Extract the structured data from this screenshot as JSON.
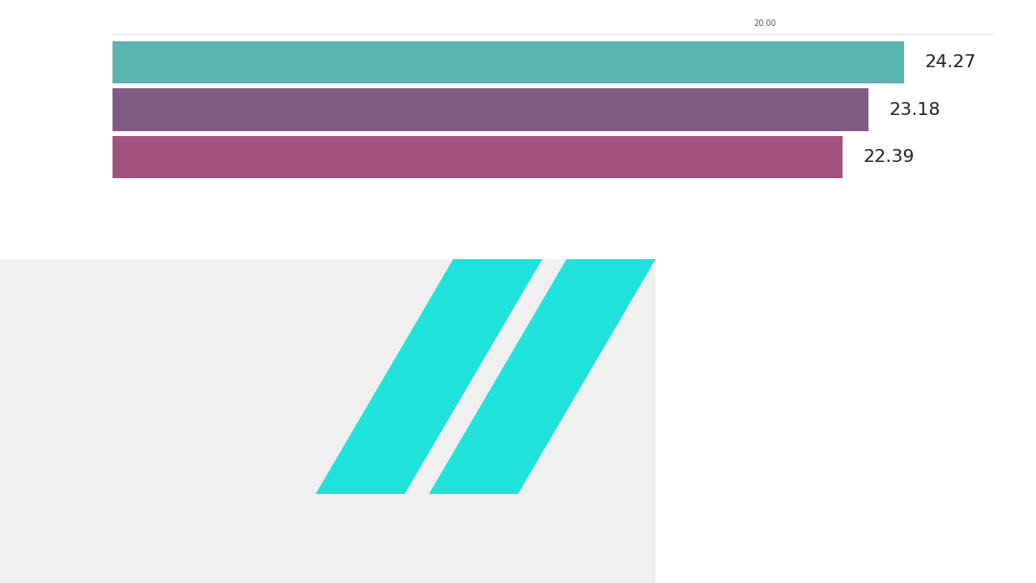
{
  "chart_data": {
    "type": "bar",
    "orientation": "horizontal",
    "categories": [
      null,
      null,
      null
    ],
    "values": [
      24.27,
      23.18,
      22.39
    ],
    "colors": [
      "#5ab4af",
      "#7f5b83",
      "#a3517f"
    ],
    "xlim": [
      0,
      27
    ],
    "xticks": [
      {
        "value": 20,
        "label": "20.00"
      }
    ],
    "data_labels": true,
    "tick_labels": "x"
  }
}
